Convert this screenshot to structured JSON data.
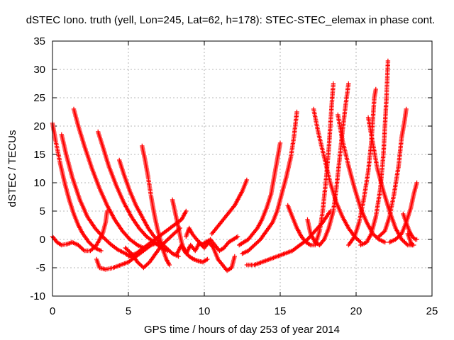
{
  "chart_data": {
    "type": "scatter",
    "title": "dSTEC Iono. truth (yell, Lon=245, Lat=62, h=178): STEC-STEC_elemax in phase cont.",
    "xlabel": "GPS time / hours of day 253 of year 2014",
    "ylabel": "dSTEC  / TECUs",
    "xlim": [
      0,
      25
    ],
    "ylim": [
      -10,
      35
    ],
    "xticks": [
      "0",
      "5",
      "10",
      "15",
      "20",
      "25"
    ],
    "yticks": [
      "-10",
      "-5",
      "0",
      "5",
      "10",
      "15",
      "20",
      "25",
      "30",
      "35"
    ],
    "grid": true,
    "marker": "+",
    "color": "#ff0000",
    "series": [
      {
        "points": [
          [
            0.0,
            20.5
          ],
          [
            0.2,
            17.5
          ],
          [
            0.5,
            13.5
          ],
          [
            0.8,
            10.0
          ],
          [
            1.1,
            7.0
          ],
          [
            1.4,
            4.5
          ],
          [
            1.7,
            2.5
          ],
          [
            2.0,
            1.0
          ],
          [
            2.4,
            -0.5
          ],
          [
            2.8,
            -1.5
          ],
          [
            3.2,
            -2.0
          ]
        ]
      },
      {
        "points": [
          [
            0.6,
            18.5
          ],
          [
            0.9,
            15.0
          ],
          [
            1.3,
            11.0
          ],
          [
            1.8,
            7.0
          ],
          [
            2.3,
            4.0
          ],
          [
            2.8,
            2.0
          ],
          [
            3.3,
            0.5
          ],
          [
            3.8,
            -0.8
          ],
          [
            4.3,
            -1.8
          ],
          [
            4.8,
            -2.5
          ],
          [
            5.2,
            -3.0
          ]
        ]
      },
      {
        "points": [
          [
            1.4,
            23.0
          ],
          [
            1.7,
            20.0
          ],
          [
            2.1,
            16.5
          ],
          [
            2.6,
            12.5
          ],
          [
            3.1,
            9.0
          ],
          [
            3.6,
            6.0
          ],
          [
            4.1,
            3.5
          ],
          [
            4.6,
            1.5
          ],
          [
            5.1,
            0.0
          ],
          [
            5.6,
            -1.0
          ],
          [
            6.0,
            -1.5
          ]
        ]
      },
      {
        "points": [
          [
            3.0,
            19.0
          ],
          [
            3.3,
            16.5
          ],
          [
            3.7,
            13.0
          ],
          [
            4.2,
            9.5
          ],
          [
            4.7,
            6.5
          ],
          [
            5.2,
            4.0
          ],
          [
            5.7,
            2.0
          ],
          [
            6.2,
            0.5
          ],
          [
            6.7,
            -0.5
          ],
          [
            7.2,
            -1.5
          ],
          [
            7.6,
            -2.0
          ]
        ]
      },
      {
        "points": [
          [
            4.4,
            14.0
          ],
          [
            4.7,
            11.5
          ],
          [
            5.1,
            8.5
          ],
          [
            5.5,
            6.0
          ],
          [
            5.9,
            4.0
          ],
          [
            6.3,
            2.0
          ],
          [
            6.7,
            0.5
          ],
          [
            7.1,
            -0.5
          ],
          [
            7.5,
            -1.5
          ],
          [
            7.9,
            -2.5
          ],
          [
            8.3,
            -3.0
          ]
        ]
      },
      {
        "points": [
          [
            5.9,
            16.5
          ],
          [
            6.1,
            14.0
          ],
          [
            6.3,
            11.0
          ],
          [
            6.5,
            7.5
          ],
          [
            6.7,
            4.5
          ],
          [
            6.9,
            2.0
          ],
          [
            7.1,
            0.0
          ],
          [
            7.3,
            -2.0
          ],
          [
            7.5,
            -3.5
          ],
          [
            7.7,
            -4.5
          ]
        ]
      },
      {
        "points": [
          [
            0.0,
            0.5
          ],
          [
            0.3,
            -0.5
          ],
          [
            0.6,
            -1.0
          ],
          [
            1.0,
            -0.8
          ],
          [
            1.3,
            -0.5
          ],
          [
            1.7,
            -1.0
          ],
          [
            2.1,
            -2.0
          ],
          [
            2.5,
            -2.0
          ],
          [
            2.9,
            -1.0
          ],
          [
            3.3,
            1.0
          ],
          [
            3.5,
            3.0
          ],
          [
            3.6,
            5.0
          ]
        ]
      },
      {
        "points": [
          [
            2.9,
            -3.5
          ],
          [
            3.1,
            -5.0
          ],
          [
            3.5,
            -5.3
          ],
          [
            4.0,
            -5.0
          ],
          [
            4.5,
            -4.5
          ],
          [
            5.0,
            -4.0
          ],
          [
            5.5,
            -3.0
          ],
          [
            6.0,
            -2.0
          ],
          [
            6.5,
            -1.0
          ],
          [
            7.0,
            -0.5
          ]
        ]
      },
      {
        "points": [
          [
            4.8,
            -1.5
          ],
          [
            5.2,
            -2.5
          ],
          [
            5.6,
            -4.0
          ],
          [
            6.0,
            -5.0
          ],
          [
            6.4,
            -4.0
          ],
          [
            6.8,
            -2.5
          ],
          [
            7.2,
            -1.0
          ],
          [
            7.6,
            0.0
          ],
          [
            8.0,
            1.0
          ],
          [
            8.4,
            2.0
          ]
        ]
      },
      {
        "points": [
          [
            5.0,
            -3.0
          ],
          [
            5.5,
            -2.5
          ],
          [
            6.0,
            -1.5
          ],
          [
            6.5,
            -0.5
          ],
          [
            7.0,
            0.5
          ],
          [
            7.5,
            1.5
          ],
          [
            8.0,
            2.5
          ],
          [
            8.5,
            3.5
          ],
          [
            8.8,
            5.0
          ]
        ]
      },
      {
        "points": [
          [
            7.9,
            7.0
          ],
          [
            8.1,
            4.5
          ],
          [
            8.3,
            2.0
          ],
          [
            8.5,
            -0.5
          ],
          [
            8.7,
            -2.0
          ],
          [
            9.0,
            -3.0
          ],
          [
            9.3,
            -3.5
          ],
          [
            9.6,
            -3.8
          ],
          [
            9.9,
            -4.0
          ],
          [
            10.2,
            -3.5
          ]
        ]
      },
      {
        "points": [
          [
            8.2,
            -2.5
          ],
          [
            8.5,
            -1.0
          ],
          [
            8.8,
            -2.5
          ],
          [
            9.1,
            -1.0
          ],
          [
            9.4,
            -2.0
          ],
          [
            9.7,
            -0.5
          ],
          [
            10.0,
            -1.5
          ],
          [
            10.3,
            -0.5
          ],
          [
            10.6,
            -1.5
          ],
          [
            10.9,
            -3.5
          ],
          [
            11.2,
            -4.5
          ],
          [
            11.5,
            -5.5
          ],
          [
            11.8,
            -5.0
          ],
          [
            12.0,
            -3.0
          ]
        ]
      },
      {
        "points": [
          [
            8.8,
            0.5
          ],
          [
            9.0,
            2.0
          ],
          [
            9.2,
            1.0
          ],
          [
            9.5,
            0.0
          ],
          [
            9.8,
            -1.0
          ],
          [
            10.1,
            -0.5
          ],
          [
            10.4,
            0.0
          ],
          [
            10.7,
            -1.0
          ],
          [
            11.0,
            -2.0
          ],
          [
            11.3,
            -1.5
          ],
          [
            11.6,
            -0.5
          ],
          [
            11.9,
            0.0
          ],
          [
            12.2,
            0.5
          ]
        ]
      },
      {
        "points": [
          [
            10.5,
            1.0
          ],
          [
            10.8,
            2.0
          ],
          [
            11.1,
            3.0
          ],
          [
            11.4,
            4.0
          ],
          [
            11.7,
            5.0
          ],
          [
            12.0,
            6.0
          ],
          [
            12.3,
            7.5
          ],
          [
            12.5,
            8.5
          ],
          [
            12.8,
            10.5
          ]
        ]
      },
      {
        "points": [
          [
            12.3,
            -1.0
          ],
          [
            12.6,
            -0.5
          ],
          [
            12.9,
            0.0
          ],
          [
            13.2,
            1.0
          ],
          [
            13.5,
            2.0
          ],
          [
            13.8,
            3.5
          ],
          [
            14.1,
            5.5
          ],
          [
            14.4,
            8.0
          ],
          [
            14.6,
            11.0
          ],
          [
            14.8,
            14.0
          ],
          [
            15.0,
            17.0
          ]
        ]
      },
      {
        "points": [
          [
            12.5,
            -2.5
          ],
          [
            12.9,
            -2.0
          ],
          [
            13.3,
            -1.0
          ],
          [
            13.7,
            0.0
          ],
          [
            14.1,
            1.5
          ],
          [
            14.5,
            3.0
          ],
          [
            14.8,
            5.0
          ],
          [
            15.1,
            8.0
          ],
          [
            15.4,
            11.0
          ],
          [
            15.7,
            14.5
          ],
          [
            15.9,
            18.0
          ],
          [
            16.1,
            22.5
          ]
        ]
      },
      {
        "points": [
          [
            12.8,
            -4.5
          ],
          [
            13.3,
            -4.5
          ],
          [
            13.8,
            -4.0
          ],
          [
            14.3,
            -3.5
          ],
          [
            14.8,
            -3.0
          ],
          [
            15.3,
            -2.5
          ],
          [
            15.8,
            -2.0
          ],
          [
            16.3,
            -1.0
          ],
          [
            16.8,
            0.0
          ],
          [
            17.3,
            1.5
          ],
          [
            17.8,
            3.0
          ],
          [
            18.3,
            5.0
          ]
        ]
      },
      {
        "points": [
          [
            15.5,
            6.0
          ],
          [
            15.8,
            4.0
          ],
          [
            16.1,
            2.0
          ],
          [
            16.4,
            0.5
          ],
          [
            16.7,
            -0.5
          ],
          [
            17.0,
            -1.0
          ],
          [
            17.3,
            -1.0
          ],
          [
            17.6,
            1.5
          ],
          [
            17.8,
            5.0
          ],
          [
            18.0,
            10.0
          ],
          [
            18.2,
            16.0
          ],
          [
            18.3,
            20.0
          ],
          [
            18.4,
            24.0
          ],
          [
            18.5,
            27.5
          ]
        ]
      },
      {
        "points": [
          [
            16.8,
            3.5
          ],
          [
            17.0,
            1.0
          ],
          [
            17.3,
            -0.5
          ],
          [
            17.6,
            -1.0
          ],
          [
            17.9,
            0.0
          ],
          [
            18.2,
            2.0
          ],
          [
            18.5,
            5.0
          ],
          [
            18.7,
            9.0
          ],
          [
            18.9,
            14.0
          ],
          [
            19.1,
            19.0
          ],
          [
            19.3,
            23.5
          ],
          [
            19.5,
            27.5
          ]
        ]
      },
      {
        "points": [
          [
            17.2,
            23.0
          ],
          [
            17.5,
            19.0
          ],
          [
            17.9,
            14.5
          ],
          [
            18.3,
            10.0
          ],
          [
            18.7,
            6.5
          ],
          [
            19.1,
            4.0
          ],
          [
            19.5,
            2.0
          ],
          [
            19.9,
            0.5
          ],
          [
            20.3,
            -0.5
          ]
        ]
      },
      {
        "points": [
          [
            18.8,
            22.0
          ],
          [
            19.1,
            17.5
          ],
          [
            19.5,
            13.0
          ],
          [
            19.9,
            9.0
          ],
          [
            20.3,
            5.5
          ],
          [
            20.7,
            3.0
          ],
          [
            21.1,
            1.0
          ],
          [
            21.5,
            0.0
          ],
          [
            21.9,
            -0.5
          ]
        ]
      },
      {
        "points": [
          [
            19.5,
            -1.0
          ],
          [
            19.9,
            0.5
          ],
          [
            20.2,
            3.0
          ],
          [
            20.5,
            7.0
          ],
          [
            20.8,
            12.0
          ],
          [
            21.0,
            17.0
          ],
          [
            21.1,
            21.0
          ],
          [
            21.2,
            25.0
          ],
          [
            21.3,
            26.5
          ]
        ]
      },
      {
        "points": [
          [
            20.3,
            -1.0
          ],
          [
            20.7,
            -0.5
          ],
          [
            21.0,
            1.0
          ],
          [
            21.3,
            4.0
          ],
          [
            21.6,
            9.0
          ],
          [
            21.8,
            15.0
          ],
          [
            21.9,
            20.0
          ],
          [
            22.0,
            25.0
          ],
          [
            22.1,
            31.5
          ]
        ]
      },
      {
        "points": [
          [
            20.8,
            21.5
          ],
          [
            21.1,
            17.0
          ],
          [
            21.4,
            12.5
          ],
          [
            21.8,
            8.5
          ],
          [
            22.2,
            5.0
          ],
          [
            22.6,
            2.0
          ],
          [
            23.0,
            0.0
          ],
          [
            23.4,
            -1.0
          ],
          [
            23.8,
            -1.0
          ]
        ]
      },
      {
        "points": [
          [
            21.5,
            0.5
          ],
          [
            21.9,
            1.5
          ],
          [
            22.2,
            4.0
          ],
          [
            22.5,
            8.0
          ],
          [
            22.8,
            13.0
          ],
          [
            23.0,
            18.0
          ],
          [
            23.2,
            21.0
          ],
          [
            23.3,
            23.0
          ]
        ]
      },
      {
        "points": [
          [
            22.2,
            -0.5
          ],
          [
            22.6,
            0.0
          ],
          [
            23.0,
            1.0
          ],
          [
            23.3,
            3.0
          ],
          [
            23.6,
            5.5
          ],
          [
            23.8,
            8.0
          ],
          [
            24.0,
            10.0
          ]
        ]
      },
      {
        "points": [
          [
            23.1,
            4.5
          ],
          [
            23.3,
            3.0
          ],
          [
            23.5,
            1.5
          ],
          [
            23.7,
            0.5
          ],
          [
            23.9,
            0.0
          ],
          [
            24.0,
            0.0
          ]
        ]
      },
      {
        "points": [
          [
            23.4,
            1.0
          ],
          [
            23.6,
            -0.5
          ],
          [
            23.7,
            -1.0
          ]
        ]
      }
    ]
  }
}
